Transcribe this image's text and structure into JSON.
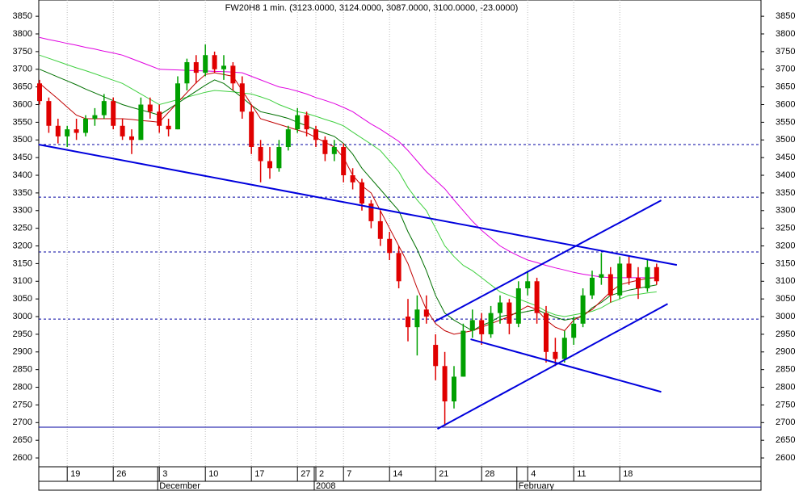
{
  "chart_data": {
    "type": "candlestick",
    "title": "FW20H8 1 min. (3123.0000, 3124.0000, 3087.0000, 3100.0000, -23.0000)",
    "categories": [
      null,
      null,
      null,
      "19",
      null,
      null,
      null,
      null,
      "26",
      null,
      null,
      null,
      null,
      "3",
      null,
      null,
      null,
      null,
      "10",
      null,
      null,
      null,
      null,
      "17",
      null,
      null,
      null,
      null,
      "27",
      null,
      "2",
      null,
      null,
      "7",
      null,
      null,
      null,
      null,
      "14",
      null,
      null,
      null,
      null,
      "21",
      null,
      null,
      null,
      null,
      "28",
      null,
      null,
      null,
      null,
      "4",
      null,
      null,
      null,
      null,
      "11",
      null,
      null,
      null,
      null,
      "18",
      null,
      null,
      null,
      null
    ],
    "month_labels": [
      null,
      null,
      null,
      null,
      null,
      null,
      null,
      null,
      null,
      null,
      null,
      null,
      null,
      "December",
      null,
      null,
      null,
      null,
      null,
      null,
      null,
      null,
      null,
      null,
      null,
      null,
      null,
      null,
      null,
      null,
      "2008",
      null,
      null,
      null,
      null,
      null,
      null,
      null,
      null,
      null,
      null,
      null,
      null,
      null,
      null,
      null,
      null,
      null,
      null,
      null,
      null,
      null,
      "February",
      null,
      null,
      null,
      null,
      null,
      null,
      null,
      null,
      null,
      null,
      null,
      null,
      null,
      null,
      null
    ],
    "open": [
      3660,
      3610,
      3540,
      3510,
      3530,
      3520,
      3560,
      3570,
      3610,
      3540,
      3510,
      3500,
      3600,
      3580,
      3540,
      3530,
      3660,
      3720,
      3690,
      3740,
      3700,
      3710,
      3660,
      3580,
      3480,
      3440,
      3420,
      3480,
      3530,
      3570,
      3530,
      3500,
      3460,
      3480,
      3400,
      3380,
      3320,
      3270,
      3220,
      3180,
      3000,
      2970,
      3020,
      2920,
      2860,
      2760,
      2830,
      2960,
      2990,
      2950,
      3010,
      3040,
      2980,
      3080,
      3100,
      3010,
      2900,
      2880,
      2940,
      2980,
      3060,
      3110,
      3120,
      3060,
      3150,
      3110,
      3080,
      3140
    ],
    "high": [
      3670,
      3620,
      3560,
      3540,
      3560,
      3570,
      3590,
      3630,
      3620,
      3560,
      3530,
      3620,
      3620,
      3600,
      3560,
      3680,
      3730,
      3740,
      3770,
      3750,
      3740,
      3720,
      3680,
      3600,
      3500,
      3480,
      3500,
      3540,
      3590,
      3580,
      3540,
      3510,
      3500,
      3490,
      3420,
      3390,
      3330,
      3300,
      3240,
      3200,
      3050,
      3060,
      3060,
      2950,
      2900,
      2860,
      2980,
      3020,
      3010,
      3030,
      3060,
      3050,
      3100,
      3130,
      3110,
      3030,
      2940,
      2960,
      3000,
      3080,
      3130,
      3180,
      3140,
      3170,
      3170,
      3140,
      3160,
      3150
    ],
    "low": [
      3600,
      3520,
      3490,
      3480,
      3500,
      3510,
      3540,
      3560,
      3530,
      3500,
      3460,
      3500,
      3560,
      3520,
      3510,
      3530,
      3640,
      3660,
      3680,
      3690,
      3670,
      3640,
      3560,
      3460,
      3380,
      3390,
      3410,
      3470,
      3520,
      3510,
      3480,
      3440,
      3440,
      3380,
      3360,
      3300,
      3250,
      3200,
      3160,
      3080,
      2930,
      2890,
      2980,
      2820,
      2690,
      2740,
      2830,
      2940,
      2920,
      2940,
      2980,
      2950,
      2970,
      3060,
      2980,
      2870,
      2860,
      2870,
      2920,
      2970,
      3050,
      3090,
      3040,
      3050,
      3090,
      3050,
      3070,
      3090
    ],
    "close": [
      3610,
      3540,
      3510,
      3530,
      3520,
      3560,
      3570,
      3610,
      3540,
      3510,
      3500,
      3600,
      3580,
      3540,
      3530,
      3660,
      3720,
      3690,
      3740,
      3700,
      3710,
      3660,
      3580,
      3480,
      3440,
      3420,
      3480,
      3530,
      3570,
      3530,
      3500,
      3460,
      3480,
      3400,
      3380,
      3320,
      3270,
      3220,
      3180,
      3100,
      2970,
      3020,
      3000,
      2860,
      2760,
      2830,
      2960,
      2990,
      2950,
      3010,
      3040,
      2980,
      3080,
      3100,
      3010,
      2900,
      2880,
      2940,
      2980,
      3060,
      3110,
      3120,
      3060,
      3150,
      3110,
      3080,
      3140,
      3100
    ],
    "up_color": "#00a000",
    "down_color": "#e00000",
    "series": [
      {
        "color": "#e000e0",
        "values": [
          3790,
          3784,
          3779,
          3773,
          3768,
          3762,
          3757,
          3751,
          3746,
          3740,
          3730,
          3720,
          3710,
          3700,
          3699,
          3698,
          3697,
          3696,
          3695,
          3694,
          3693,
          3692,
          3690,
          3680,
          3670,
          3660,
          3650,
          3645,
          3638,
          3630,
          3620,
          3612,
          3603,
          3592,
          3580,
          3562,
          3545,
          3530,
          3513,
          3496,
          3470,
          3440,
          3410,
          3386,
          3362,
          3330,
          3300,
          3270,
          3244,
          3222,
          3200,
          3185,
          3172,
          3160,
          3153,
          3145,
          3138,
          3132,
          3125,
          3120,
          3116,
          3112,
          3110,
          3110,
          3110,
          3110,
          3110,
          3110
        ]
      },
      {
        "color": "#40d040",
        "values": [
          3740,
          3731,
          3722,
          3713,
          3704,
          3696,
          3687,
          3678,
          3669,
          3660,
          3645,
          3630,
          3615,
          3600,
          3607,
          3614,
          3621,
          3628,
          3635,
          3640,
          3638,
          3636,
          3633,
          3630,
          3622,
          3613,
          3600,
          3590,
          3580,
          3575,
          3567,
          3558,
          3550,
          3540,
          3522,
          3505,
          3488,
          3470,
          3440,
          3410,
          3365,
          3330,
          3300,
          3250,
          3200,
          3170,
          3145,
          3130,
          3110,
          3090,
          3070,
          3060,
          3050,
          3040,
          3030,
          3015,
          3005,
          3000,
          3005,
          3010,
          3015,
          3025,
          3040,
          3050,
          3060,
          3063,
          3067,
          3070
        ]
      },
      {
        "color": "#007000",
        "values": [
          3700,
          3689,
          3678,
          3667,
          3656,
          3644,
          3633,
          3622,
          3611,
          3600,
          3592,
          3585,
          3578,
          3570,
          3587,
          3604,
          3621,
          3638,
          3655,
          3670,
          3660,
          3640,
          3620,
          3598,
          3580,
          3574,
          3568,
          3561,
          3550,
          3540,
          3528,
          3519,
          3510,
          3490,
          3460,
          3420,
          3390,
          3360,
          3330,
          3300,
          3240,
          3190,
          3130,
          3060,
          3010,
          2990,
          2975,
          2960,
          2975,
          2985,
          3000,
          3005,
          3010,
          3015,
          3020,
          3008,
          2998,
          2990,
          2995,
          3000,
          3025,
          3040,
          3060,
          3068,
          3075,
          3080,
          3085,
          3090
        ]
      },
      {
        "color": "#c00000",
        "values": [
          3660,
          3638,
          3616,
          3593,
          3570,
          3560,
          3560,
          3560,
          3560,
          3560,
          3558,
          3555,
          3553,
          3550,
          3578,
          3606,
          3634,
          3662,
          3685,
          3690,
          3685,
          3680,
          3640,
          3600,
          3560,
          3552,
          3544,
          3536,
          3528,
          3520,
          3507,
          3493,
          3480,
          3450,
          3400,
          3370,
          3350,
          3300,
          3250,
          3200,
          3150,
          3080,
          3020,
          2980,
          2960,
          2950,
          2955,
          2960,
          2970,
          2980,
          2990,
          3000,
          3015,
          3030,
          3020,
          2990,
          2970,
          2960,
          2990,
          3005,
          3020,
          3045,
          3070,
          3090,
          3097,
          3103,
          3108,
          3110
        ]
      }
    ],
    "levels": [
      3487,
      3338,
      3183,
      2993
    ],
    "level_color": "#0000a0",
    "base_line": 2687,
    "trend_color": "#0000dd",
    "trend_lines": [
      {
        "x": [
          -0.1,
          69.2
        ],
        "values": [
          3487,
          3146
        ]
      },
      {
        "x": [
          42.9,
          67.5
        ],
        "values": [
          2986,
          3329
        ]
      },
      {
        "x": [
          43.2,
          68.2
        ],
        "values": [
          2682,
          3036
        ]
      },
      {
        "x": [
          46.8,
          67.5
        ],
        "values": [
          2936,
          2787
        ]
      }
    ],
    "ylim": [
      2575,
      3896
    ],
    "yticks": [
      2600,
      2650,
      2700,
      2750,
      2800,
      2850,
      2900,
      2950,
      3000,
      3050,
      3100,
      3150,
      3200,
      3250,
      3300,
      3350,
      3400,
      3450,
      3500,
      3550,
      3600,
      3650,
      3700,
      3750,
      3800,
      3850
    ]
  }
}
